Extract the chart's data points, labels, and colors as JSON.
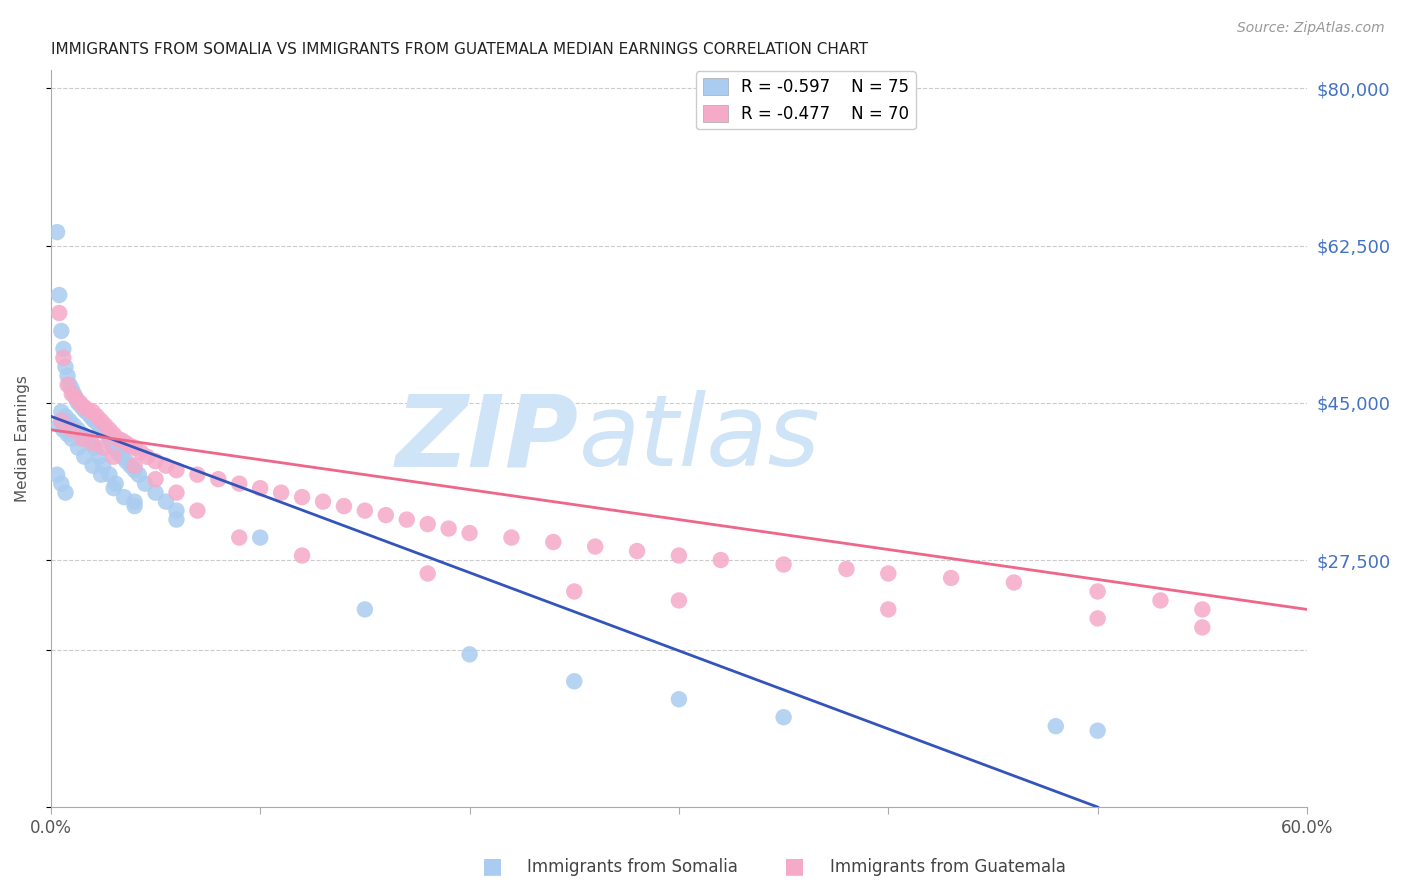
{
  "title": "IMMIGRANTS FROM SOMALIA VS IMMIGRANTS FROM GUATEMALA MEDIAN EARNINGS CORRELATION CHART",
  "source": "Source: ZipAtlas.com",
  "ylabel": "Median Earnings",
  "xlim": [
    0.0,
    60.0
  ],
  "ylim": [
    0,
    82000
  ],
  "somalia_color": "#aaccf0",
  "guatemala_color": "#f5aac8",
  "somalia_line_color": "#3355bb",
  "guatemala_line_color": "#ee6688",
  "somalia_R": -0.597,
  "somalia_N": 75,
  "guatemala_R": -0.477,
  "guatemala_N": 70,
  "watermark_zip": "ZIP",
  "watermark_atlas": "atlas",
  "watermark_color": "#d0e4f8",
  "background_color": "#ffffff",
  "grid_color": "#cccccc",
  "title_color": "#222222",
  "right_tick_color": "#4472c4",
  "somalia_line_x0": 0.0,
  "somalia_line_y0": 43500,
  "somalia_line_x1": 50.0,
  "somalia_line_y1": 0,
  "guatemala_line_x0": 0.0,
  "guatemala_line_y0": 42000,
  "guatemala_line_x1": 60.0,
  "guatemala_line_y1": 22000,
  "somalia_x": [
    0.3,
    0.4,
    0.5,
    0.6,
    0.7,
    0.8,
    0.9,
    1.0,
    1.1,
    1.2,
    1.3,
    1.4,
    1.5,
    1.6,
    1.7,
    1.8,
    1.9,
    2.0,
    2.1,
    2.2,
    2.3,
    2.4,
    2.5,
    2.6,
    2.7,
    2.8,
    2.9,
    3.0,
    3.2,
    3.4,
    3.6,
    3.8,
    4.0,
    4.2,
    4.5,
    5.0,
    5.5,
    6.0,
    0.5,
    0.7,
    0.9,
    1.1,
    1.3,
    1.5,
    1.7,
    1.9,
    2.1,
    2.3,
    2.5,
    2.8,
    3.1,
    3.5,
    4.0,
    0.4,
    0.6,
    0.8,
    1.0,
    1.3,
    1.6,
    2.0,
    2.4,
    3.0,
    4.0,
    6.0,
    10.0,
    15.0,
    20.0,
    25.0,
    30.0,
    35.0,
    48.0,
    50.0,
    0.3,
    0.5,
    0.7
  ],
  "somalia_y": [
    64000,
    57000,
    53000,
    51000,
    49000,
    48000,
    47000,
    46500,
    46000,
    45500,
    45000,
    44800,
    44500,
    44200,
    44000,
    43800,
    43500,
    43200,
    43000,
    42800,
    42500,
    42200,
    42000,
    41800,
    41500,
    41000,
    40500,
    40000,
    39500,
    39000,
    38500,
    38000,
    37500,
    37000,
    36000,
    35000,
    34000,
    33000,
    44000,
    43500,
    43000,
    42500,
    42000,
    41500,
    41000,
    40500,
    40000,
    39000,
    38000,
    37000,
    36000,
    34500,
    33500,
    42500,
    42000,
    41500,
    41000,
    40000,
    39000,
    38000,
    37000,
    35500,
    34000,
    32000,
    30000,
    22000,
    17000,
    14000,
    12000,
    10000,
    9000,
    8500,
    37000,
    36000,
    35000
  ],
  "guatemala_x": [
    0.4,
    0.6,
    0.8,
    1.0,
    1.2,
    1.4,
    1.6,
    1.8,
    2.0,
    2.2,
    2.4,
    2.6,
    2.8,
    3.0,
    3.2,
    3.4,
    3.6,
    3.8,
    4.0,
    4.3,
    4.6,
    5.0,
    5.5,
    6.0,
    7.0,
    8.0,
    9.0,
    10.0,
    11.0,
    12.0,
    13.0,
    14.0,
    15.0,
    16.0,
    17.0,
    18.0,
    19.0,
    20.0,
    22.0,
    24.0,
    26.0,
    28.0,
    30.0,
    32.0,
    35.0,
    38.0,
    40.0,
    43.0,
    46.0,
    50.0,
    53.0,
    55.0,
    0.5,
    1.0,
    1.5,
    2.0,
    2.5,
    3.0,
    4.0,
    5.0,
    6.0,
    7.0,
    9.0,
    12.0,
    18.0,
    25.0,
    30.0,
    40.0,
    50.0,
    55.0
  ],
  "guatemala_y": [
    55000,
    50000,
    47000,
    46000,
    45500,
    45000,
    44500,
    44200,
    44000,
    43500,
    43000,
    42500,
    42000,
    41500,
    41000,
    40800,
    40500,
    40200,
    40000,
    39500,
    39000,
    38500,
    38000,
    37500,
    37000,
    36500,
    36000,
    35500,
    35000,
    34500,
    34000,
    33500,
    33000,
    32500,
    32000,
    31500,
    31000,
    30500,
    30000,
    29500,
    29000,
    28500,
    28000,
    27500,
    27000,
    26500,
    26000,
    25500,
    25000,
    24000,
    23000,
    22000,
    43000,
    42000,
    41000,
    40500,
    40000,
    39000,
    38000,
    36500,
    35000,
    33000,
    30000,
    28000,
    26000,
    24000,
    23000,
    22000,
    21000,
    20000
  ]
}
